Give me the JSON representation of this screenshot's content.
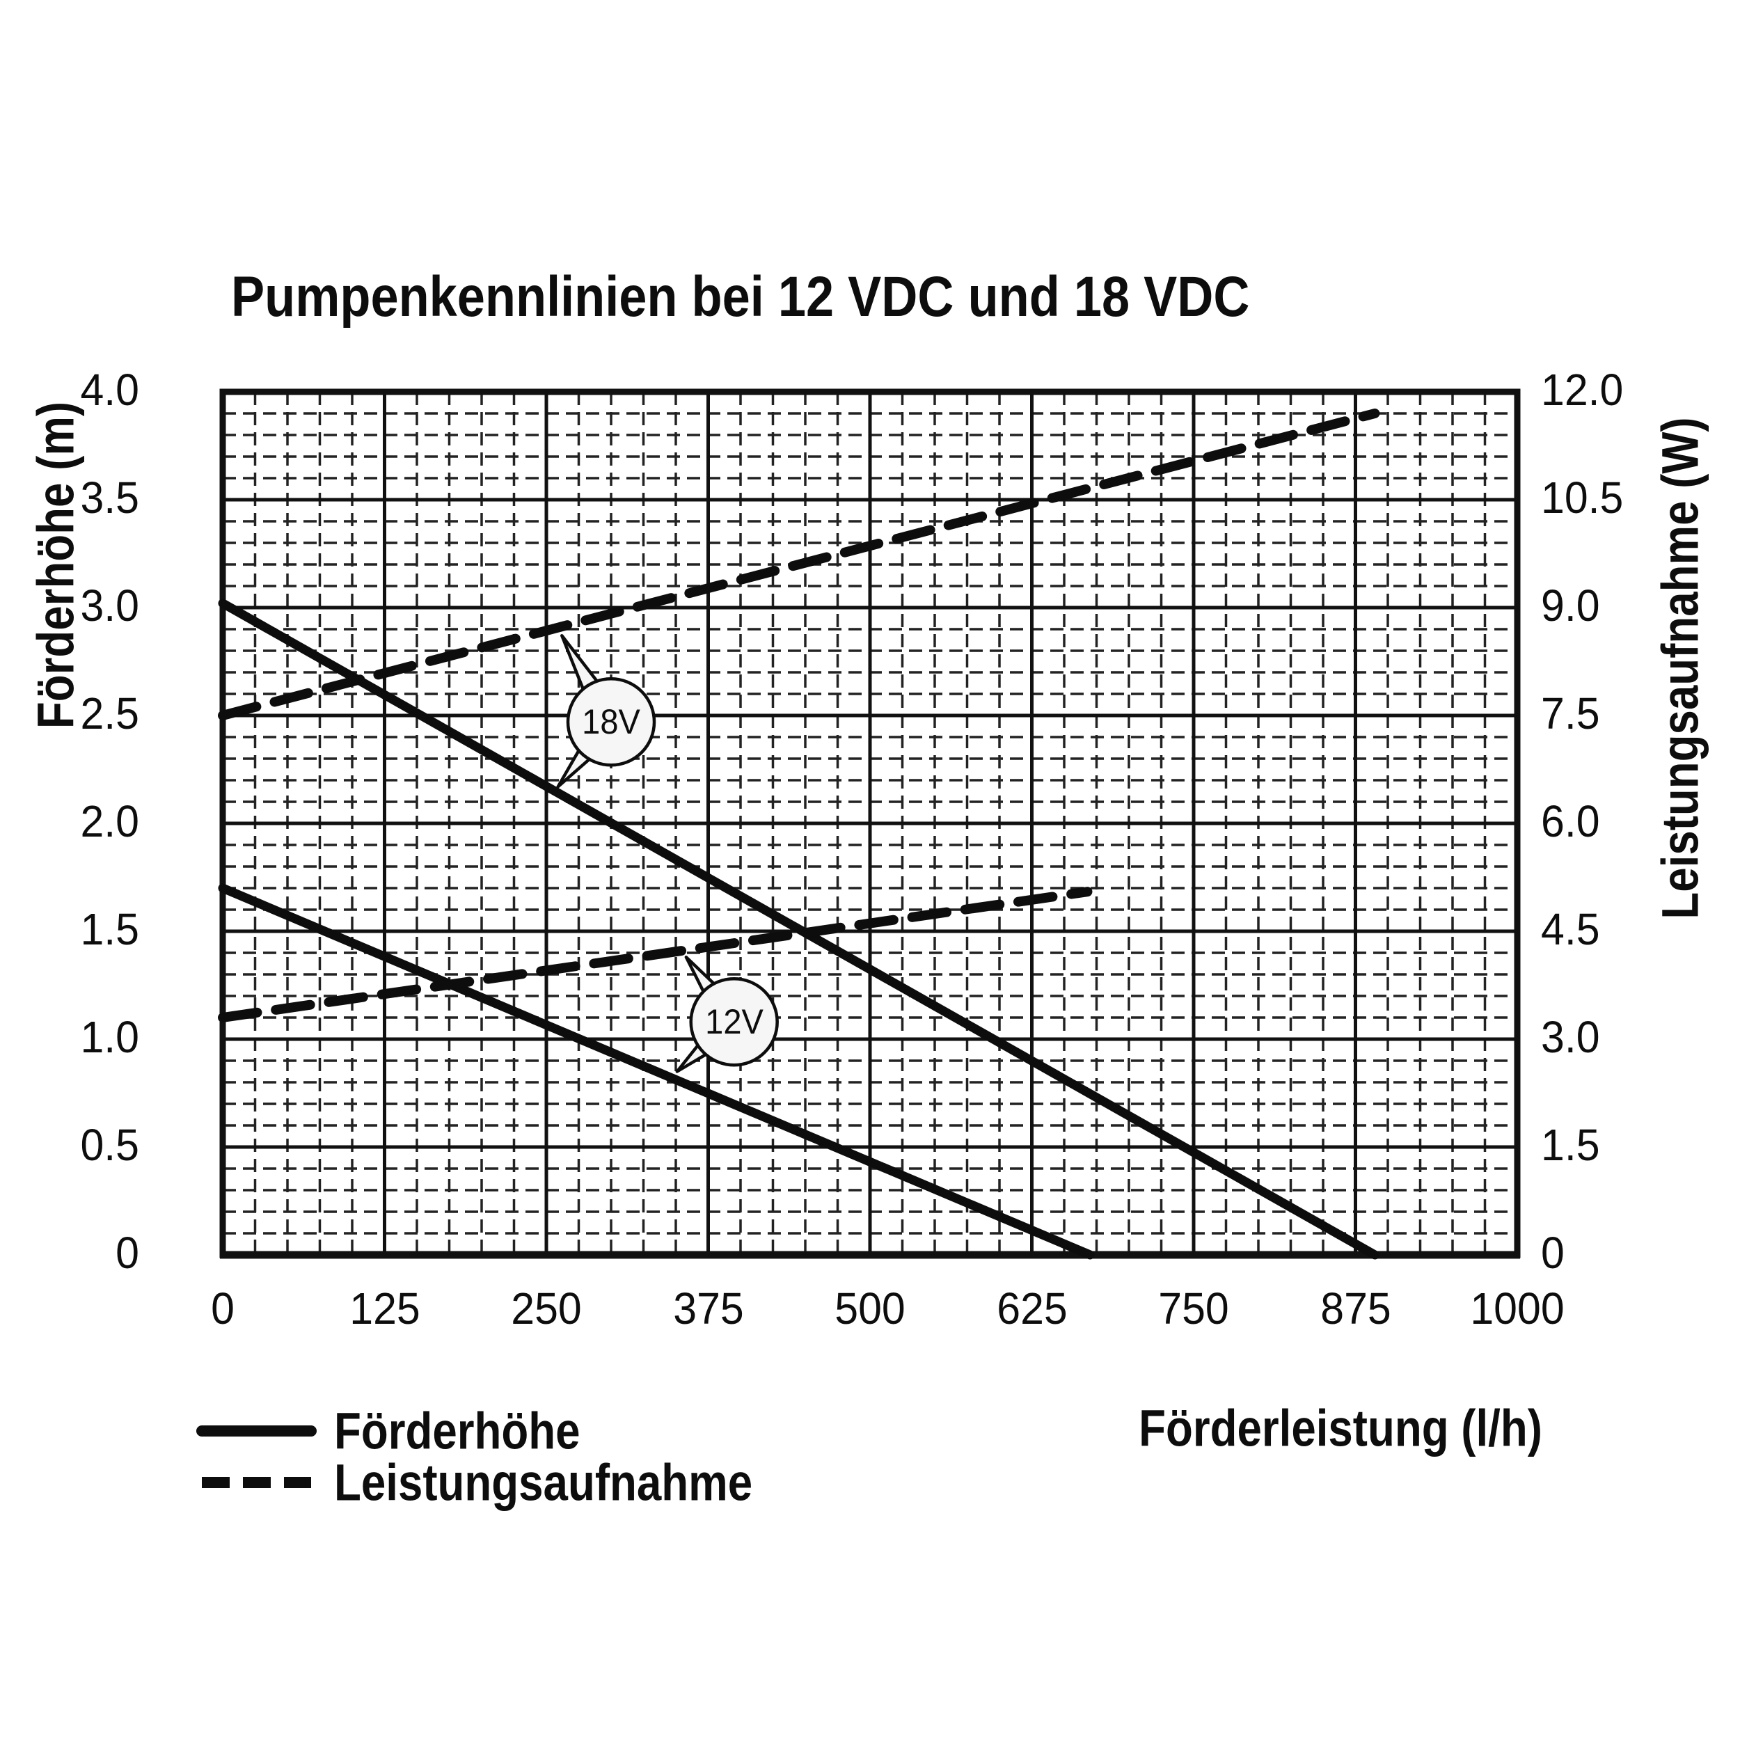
{
  "chart_data": {
    "type": "line",
    "title": "Pumpenkennlinien bei 12 VDC und 18 VDC",
    "x_axis": {
      "label": "Förderleistung (l/h)",
      "min": 0,
      "max": 1000,
      "major_step": 125,
      "minor_step": 25,
      "tick_labels": [
        "0",
        "125",
        "250",
        "375",
        "500",
        "625",
        "750",
        "875",
        "1000"
      ],
      "grid": true
    },
    "y_axis_left": {
      "label": "Förderhöhe (m)",
      "min": 0,
      "max": 4.0,
      "major_step": 0.5,
      "minor_step": 0.1,
      "tick_labels": [
        "4.0",
        "3.5",
        "3.0",
        "2.5",
        "2.0",
        "1.5",
        "1.0",
        "0.5",
        "0"
      ]
    },
    "y_axis_right": {
      "label": "Leistungsaufnahme (W)",
      "min": 0,
      "max": 12.0,
      "major_step": 1.5,
      "tick_labels": [
        "12.0",
        "10.5",
        "9.0",
        "7.5",
        "6.0",
        "4.5",
        "3.0",
        "1.5",
        "0"
      ]
    },
    "series": [
      {
        "name": "Förderhöhe 18V",
        "style": "solid",
        "axis": "left",
        "unit": "m",
        "points": [
          [
            0,
            3.02
          ],
          [
            890,
            0
          ]
        ]
      },
      {
        "name": "Förderhöhe 12V",
        "style": "solid",
        "axis": "left",
        "unit": "m",
        "points": [
          [
            0,
            1.7
          ],
          [
            670,
            0
          ]
        ]
      },
      {
        "name": "Leistungsaufnahme 18V",
        "style": "dashed",
        "axis": "right",
        "unit": "W",
        "points": [
          [
            0,
            7.5
          ],
          [
            890,
            11.7
          ]
        ]
      },
      {
        "name": "Leistungsaufnahme 12V",
        "style": "dashed",
        "axis": "right",
        "unit": "W",
        "points": [
          [
            0,
            3.3
          ],
          [
            668,
            5.05
          ]
        ]
      }
    ],
    "annotations": [
      {
        "label": "18V",
        "cx": 300,
        "cy_m": 2.47,
        "tails": [
          {
            "x": 262,
            "y_m": 2.87
          },
          {
            "x": 259,
            "y_m": 2.17
          }
        ]
      },
      {
        "label": "12V",
        "cx": 395,
        "cy_m": 1.08,
        "tails": [
          {
            "x": 358,
            "y_m": 1.38
          },
          {
            "x": 351,
            "y_m": 0.85
          }
        ]
      }
    ],
    "legend": [
      {
        "label": "Förderhöhe",
        "style": "solid"
      },
      {
        "label": "Leistungsaufnahme",
        "style": "dashed"
      }
    ],
    "colors": {
      "line": "#0d0d0d",
      "grid_major": "#111111",
      "grid_minor": "#222222",
      "balloon_fill": "#f6f6f6",
      "background": "#ffffff"
    }
  }
}
